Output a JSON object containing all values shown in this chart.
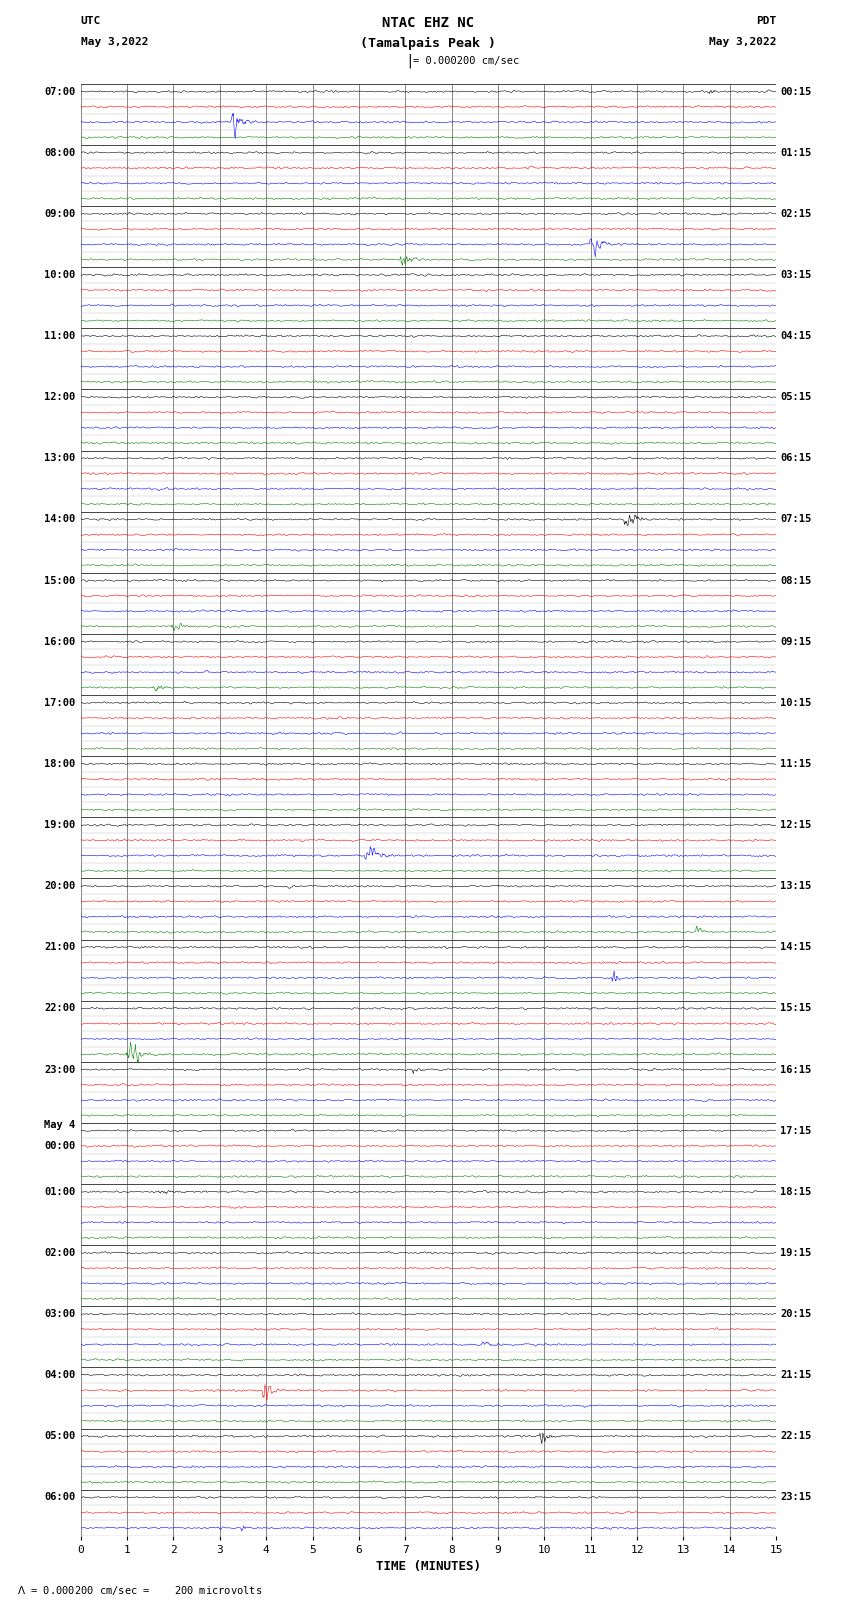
{
  "title_line1": "NTAC EHZ NC",
  "title_line2": "(Tamalpais Peak )",
  "scale_text": "= 0.000200 cm/sec",
  "bottom_text": "= 0.000200 cm/sec =    200 microvolts",
  "left_header": "UTC",
  "left_date": "May 3,2022",
  "right_header": "PDT",
  "right_date": "May 3,2022",
  "xlabel": "TIME (MINUTES)",
  "xmin": 0,
  "xmax": 15,
  "figure_width": 8.5,
  "figure_height": 16.13,
  "dpi": 100,
  "bg_color": "#ffffff",
  "trace_colors": [
    "black",
    "red",
    "blue",
    "green"
  ],
  "grid_color": "#888888",
  "utc_labels": [
    "07:00",
    "",
    "",
    "",
    "08:00",
    "",
    "",
    "",
    "09:00",
    "",
    "",
    "",
    "10:00",
    "",
    "",
    "",
    "11:00",
    "",
    "",
    "",
    "12:00",
    "",
    "",
    "",
    "13:00",
    "",
    "",
    "",
    "14:00",
    "",
    "",
    "",
    "15:00",
    "",
    "",
    "",
    "16:00",
    "",
    "",
    "",
    "17:00",
    "",
    "",
    "",
    "18:00",
    "",
    "",
    "",
    "19:00",
    "",
    "",
    "",
    "20:00",
    "",
    "",
    "",
    "21:00",
    "",
    "",
    "",
    "22:00",
    "",
    "",
    "",
    "23:00",
    "",
    "",
    "",
    "May 4",
    "00:00",
    "",
    "",
    "01:00",
    "",
    "",
    "",
    "02:00",
    "",
    "",
    "",
    "03:00",
    "",
    "",
    "",
    "04:00",
    "",
    "",
    "",
    "05:00",
    "",
    "",
    "",
    "06:00",
    "",
    ""
  ],
  "pdt_labels": [
    "00:15",
    "",
    "",
    "",
    "01:15",
    "",
    "",
    "",
    "02:15",
    "",
    "",
    "",
    "03:15",
    "",
    "",
    "",
    "04:15",
    "",
    "",
    "",
    "05:15",
    "",
    "",
    "",
    "06:15",
    "",
    "",
    "",
    "07:15",
    "",
    "",
    "",
    "08:15",
    "",
    "",
    "",
    "09:15",
    "",
    "",
    "",
    "10:15",
    "",
    "",
    "",
    "11:15",
    "",
    "",
    "",
    "12:15",
    "",
    "",
    "",
    "13:15",
    "",
    "",
    "",
    "14:15",
    "",
    "",
    "",
    "15:15",
    "",
    "",
    "",
    "16:15",
    "",
    "",
    "",
    "17:15",
    "",
    "",
    "",
    "18:15",
    "",
    "",
    "",
    "19:15",
    "",
    "",
    "",
    "20:15",
    "",
    "",
    "",
    "21:15",
    "",
    "",
    "",
    "22:15",
    "",
    "",
    "",
    "23:15",
    "",
    ""
  ],
  "noise_base": 0.06,
  "seed": 777
}
